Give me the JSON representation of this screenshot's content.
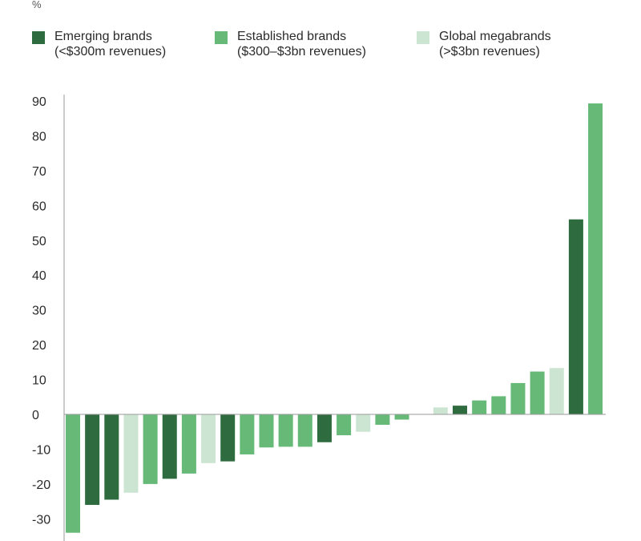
{
  "chart_data": {
    "type": "bar",
    "unit_label": "%",
    "ylim": [
      -35,
      90
    ],
    "yticks": [
      90,
      80,
      70,
      60,
      50,
      40,
      30,
      20,
      10,
      0,
      -10,
      -20,
      -30
    ],
    "legend": [
      {
        "key": "emerging",
        "line1": "Emerging brands",
        "line2": "(<$300m revenues)",
        "color": "#2e6b3f"
      },
      {
        "key": "established",
        "line1": "Established brands",
        "line2": "($300–$3bn revenues)",
        "color": "#66b977"
      },
      {
        "key": "mega",
        "line1": "Global megabrands",
        "line2": "(>$3bn revenues)",
        "color": "#cce5d2"
      }
    ],
    "bars": [
      {
        "series": "established",
        "value": -34
      },
      {
        "series": "emerging",
        "value": -26
      },
      {
        "series": "emerging",
        "value": -24.5
      },
      {
        "series": "mega",
        "value": -22.5
      },
      {
        "series": "established",
        "value": -20
      },
      {
        "series": "emerging",
        "value": -18.5
      },
      {
        "series": "established",
        "value": -17
      },
      {
        "series": "mega",
        "value": -14
      },
      {
        "series": "emerging",
        "value": -13.5
      },
      {
        "series": "established",
        "value": -11.5
      },
      {
        "series": "established",
        "value": -9.5
      },
      {
        "series": "established",
        "value": -9.3
      },
      {
        "series": "established",
        "value": -9.3
      },
      {
        "series": "emerging",
        "value": -8
      },
      {
        "series": "established",
        "value": -6
      },
      {
        "series": "mega",
        "value": -5
      },
      {
        "series": "established",
        "value": -3
      },
      {
        "series": "established",
        "value": -1.5
      },
      {
        "series": "none",
        "value": 0
      },
      {
        "series": "mega",
        "value": 2
      },
      {
        "series": "emerging",
        "value": 2.5
      },
      {
        "series": "established",
        "value": 4
      },
      {
        "series": "established",
        "value": 5.2
      },
      {
        "series": "established",
        "value": 9
      },
      {
        "series": "established",
        "value": 12.3
      },
      {
        "series": "mega",
        "value": 13.3
      },
      {
        "series": "emerging",
        "value": 56
      },
      {
        "series": "established",
        "value": 89.3
      }
    ]
  }
}
